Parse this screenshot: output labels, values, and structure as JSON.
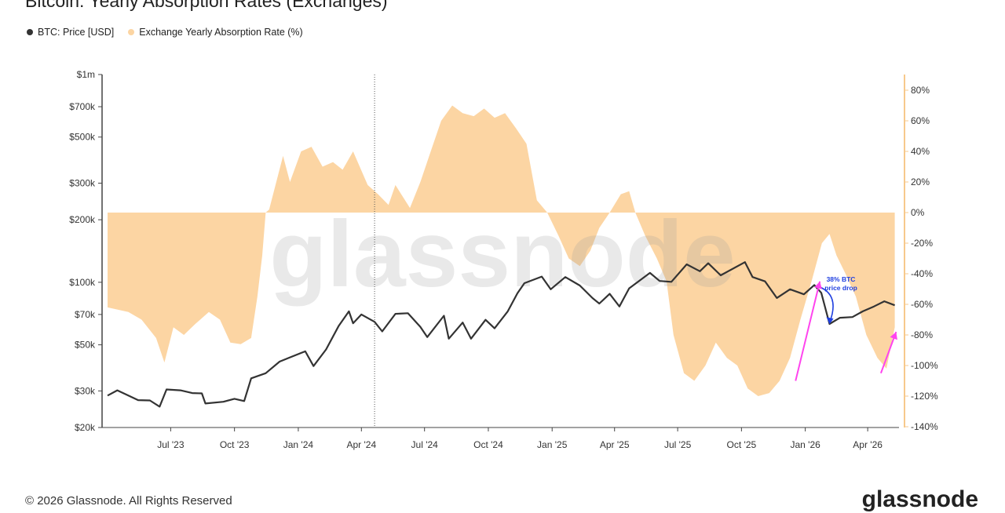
{
  "title": "Bitcoin: Yearly Absorption Rates (Exchanges)",
  "footer": {
    "copyright": "© 2026 Glassnode. All Rights Reserved",
    "logo": "glassnode"
  },
  "watermark": "glassnode",
  "colors": {
    "price": "#333333",
    "absorption": "#fcd5a3",
    "annotation": "#1f3fe0",
    "arrow": "#ff44ee"
  },
  "chart_data": {
    "type": "line",
    "title": "Bitcoin: Yearly Absorption Rates (Exchanges)",
    "legend_position": "top-left",
    "grid": false,
    "x_ticks": [
      "Jul '23",
      "Oct '23",
      "Jan '24",
      "Apr '24",
      "Jul '24",
      "Oct '24",
      "Jan '25",
      "Apr '25",
      "Jul '25",
      "Oct '25",
      "Jan '26",
      "Apr '26"
    ],
    "x_range": [
      "2023-04-01",
      "2026-05-15"
    ],
    "y_left": {
      "scale": "log",
      "ticks": [
        "$20k",
        "$30k",
        "$50k",
        "$70k",
        "$100k",
        "$200k",
        "$300k",
        "$500k",
        "$700k",
        "$1m"
      ],
      "range": [
        20000,
        1000000
      ]
    },
    "y_right": {
      "scale": "linear",
      "ticks": [
        "80%",
        "60%",
        "40%",
        "20%",
        "0%",
        "-20%",
        "-40%",
        "-60%",
        "-80%",
        "-100%",
        "-120%",
        "-140%"
      ],
      "range": [
        -140,
        90
      ]
    },
    "vertical_marker": "2024-04-20",
    "series": [
      {
        "name": "BTC: Price [USD]",
        "axis": "left",
        "style": "line",
        "points": [
          [
            "2023-04-01",
            28500
          ],
          [
            "2023-04-15",
            30200
          ],
          [
            "2023-05-01",
            28500
          ],
          [
            "2023-05-15",
            27100
          ],
          [
            "2023-06-01",
            27000
          ],
          [
            "2023-06-15",
            25200
          ],
          [
            "2023-06-25",
            30500
          ],
          [
            "2023-07-15",
            30200
          ],
          [
            "2023-08-01",
            29300
          ],
          [
            "2023-08-15",
            29200
          ],
          [
            "2023-08-20",
            26100
          ],
          [
            "2023-09-15",
            26600
          ],
          [
            "2023-10-01",
            27500
          ],
          [
            "2023-10-15",
            26800
          ],
          [
            "2023-10-25",
            34500
          ],
          [
            "2023-11-15",
            36500
          ],
          [
            "2023-12-05",
            41500
          ],
          [
            "2023-12-20",
            43500
          ],
          [
            "2024-01-11",
            46500
          ],
          [
            "2024-01-23",
            39500
          ],
          [
            "2024-02-10",
            47500
          ],
          [
            "2024-02-28",
            61500
          ],
          [
            "2024-03-14",
            72500
          ],
          [
            "2024-03-20",
            63500
          ],
          [
            "2024-04-01",
            70000
          ],
          [
            "2024-04-20",
            64500
          ],
          [
            "2024-05-01",
            58000
          ],
          [
            "2024-05-20",
            70500
          ],
          [
            "2024-06-07",
            71000
          ],
          [
            "2024-06-25",
            61000
          ],
          [
            "2024-07-05",
            54500
          ],
          [
            "2024-07-29",
            69000
          ],
          [
            "2024-08-05",
            53500
          ],
          [
            "2024-08-25",
            64000
          ],
          [
            "2024-09-06",
            53500
          ],
          [
            "2024-09-27",
            66000
          ],
          [
            "2024-10-10",
            60000
          ],
          [
            "2024-10-29",
            72500
          ],
          [
            "2024-11-12",
            88500
          ],
          [
            "2024-11-22",
            99000
          ],
          [
            "2024-12-17",
            106500
          ],
          [
            "2024-12-30",
            92500
          ],
          [
            "2025-01-20",
            106000
          ],
          [
            "2025-02-10",
            96500
          ],
          [
            "2025-02-28",
            84000
          ],
          [
            "2025-03-10",
            79000
          ],
          [
            "2025-03-25",
            88000
          ],
          [
            "2025-04-08",
            76500
          ],
          [
            "2025-04-22",
            93500
          ],
          [
            "2025-05-22",
            111000
          ],
          [
            "2025-06-05",
            101500
          ],
          [
            "2025-06-22",
            100500
          ],
          [
            "2025-07-14",
            122000
          ],
          [
            "2025-08-02",
            113000
          ],
          [
            "2025-08-14",
            123500
          ],
          [
            "2025-09-01",
            108000
          ],
          [
            "2025-10-06",
            125000
          ],
          [
            "2025-10-17",
            106000
          ],
          [
            "2025-11-04",
            101000
          ],
          [
            "2025-11-21",
            84000
          ],
          [
            "2025-12-10",
            92500
          ],
          [
            "2025-12-30",
            87500
          ],
          [
            "2026-01-14",
            97000
          ],
          [
            "2026-01-24",
            89000
          ],
          [
            "2026-02-05",
            63000
          ],
          [
            "2026-02-20",
            67500
          ],
          [
            "2026-03-10",
            68000
          ],
          [
            "2026-03-25",
            72500
          ],
          [
            "2026-04-10",
            76500
          ],
          [
            "2026-04-25",
            81000
          ],
          [
            "2026-05-10",
            77500
          ]
        ]
      },
      {
        "name": "Exchange Yearly Absorption Rate (%)",
        "axis": "right",
        "style": "area",
        "points": [
          [
            "2023-04-01",
            -62
          ],
          [
            "2023-05-01",
            -65
          ],
          [
            "2023-05-20",
            -70
          ],
          [
            "2023-06-10",
            -82
          ],
          [
            "2023-06-22",
            -98
          ],
          [
            "2023-07-05",
            -75
          ],
          [
            "2023-07-20",
            -80
          ],
          [
            "2023-08-05",
            -73
          ],
          [
            "2023-08-25",
            -65
          ],
          [
            "2023-09-10",
            -70
          ],
          [
            "2023-09-25",
            -85
          ],
          [
            "2023-10-10",
            -86
          ],
          [
            "2023-10-25",
            -82
          ],
          [
            "2023-11-03",
            -55
          ],
          [
            "2023-11-10",
            -28
          ],
          [
            "2023-11-15",
            0
          ],
          [
            "2023-11-20",
            2
          ],
          [
            "2023-12-10",
            37
          ],
          [
            "2023-12-20",
            20
          ],
          [
            "2024-01-05",
            40
          ],
          [
            "2024-01-20",
            43
          ],
          [
            "2024-02-05",
            30
          ],
          [
            "2024-02-20",
            33
          ],
          [
            "2024-03-05",
            28
          ],
          [
            "2024-03-20",
            40
          ],
          [
            "2024-04-10",
            18
          ],
          [
            "2024-04-25",
            12
          ],
          [
            "2024-05-10",
            5
          ],
          [
            "2024-05-20",
            18
          ],
          [
            "2024-06-10",
            3
          ],
          [
            "2024-06-25",
            20
          ],
          [
            "2024-07-10",
            40
          ],
          [
            "2024-07-25",
            60
          ],
          [
            "2024-08-10",
            70
          ],
          [
            "2024-08-25",
            65
          ],
          [
            "2024-09-10",
            63
          ],
          [
            "2024-09-25",
            68
          ],
          [
            "2024-10-10",
            62
          ],
          [
            "2024-10-25",
            65
          ],
          [
            "2024-11-10",
            55
          ],
          [
            "2024-11-25",
            45
          ],
          [
            "2024-12-10",
            8
          ],
          [
            "2024-12-25",
            0
          ],
          [
            "2025-01-10",
            -15
          ],
          [
            "2025-01-25",
            -30
          ],
          [
            "2025-02-10",
            -35
          ],
          [
            "2025-02-25",
            -25
          ],
          [
            "2025-03-10",
            -10
          ],
          [
            "2025-03-25",
            0
          ],
          [
            "2025-04-10",
            12
          ],
          [
            "2025-04-22",
            14
          ],
          [
            "2025-05-01",
            0
          ],
          [
            "2025-05-15",
            -15
          ],
          [
            "2025-06-01",
            -30
          ],
          [
            "2025-06-15",
            -45
          ],
          [
            "2025-06-25",
            -80
          ],
          [
            "2025-07-10",
            -105
          ],
          [
            "2025-07-25",
            -110
          ],
          [
            "2025-08-10",
            -100
          ],
          [
            "2025-08-25",
            -85
          ],
          [
            "2025-09-10",
            -95
          ],
          [
            "2025-09-25",
            -100
          ],
          [
            "2025-10-10",
            -115
          ],
          [
            "2025-10-25",
            -120
          ],
          [
            "2025-11-10",
            -118
          ],
          [
            "2025-11-25",
            -110
          ],
          [
            "2025-12-10",
            -95
          ],
          [
            "2025-12-25",
            -70
          ],
          [
            "2026-01-10",
            -45
          ],
          [
            "2026-01-25",
            -20
          ],
          [
            "2026-02-05",
            -14
          ],
          [
            "2026-02-15",
            -28
          ],
          [
            "2026-02-28",
            -40
          ],
          [
            "2026-03-15",
            -55
          ],
          [
            "2026-03-30",
            -80
          ],
          [
            "2026-04-15",
            -95
          ],
          [
            "2026-04-28",
            -102
          ],
          [
            "2026-05-10",
            -75
          ]
        ]
      }
    ],
    "annotations": [
      {
        "text": [
          "38% BTC",
          "price drop"
        ],
        "color": "#1f3fe0"
      }
    ]
  }
}
